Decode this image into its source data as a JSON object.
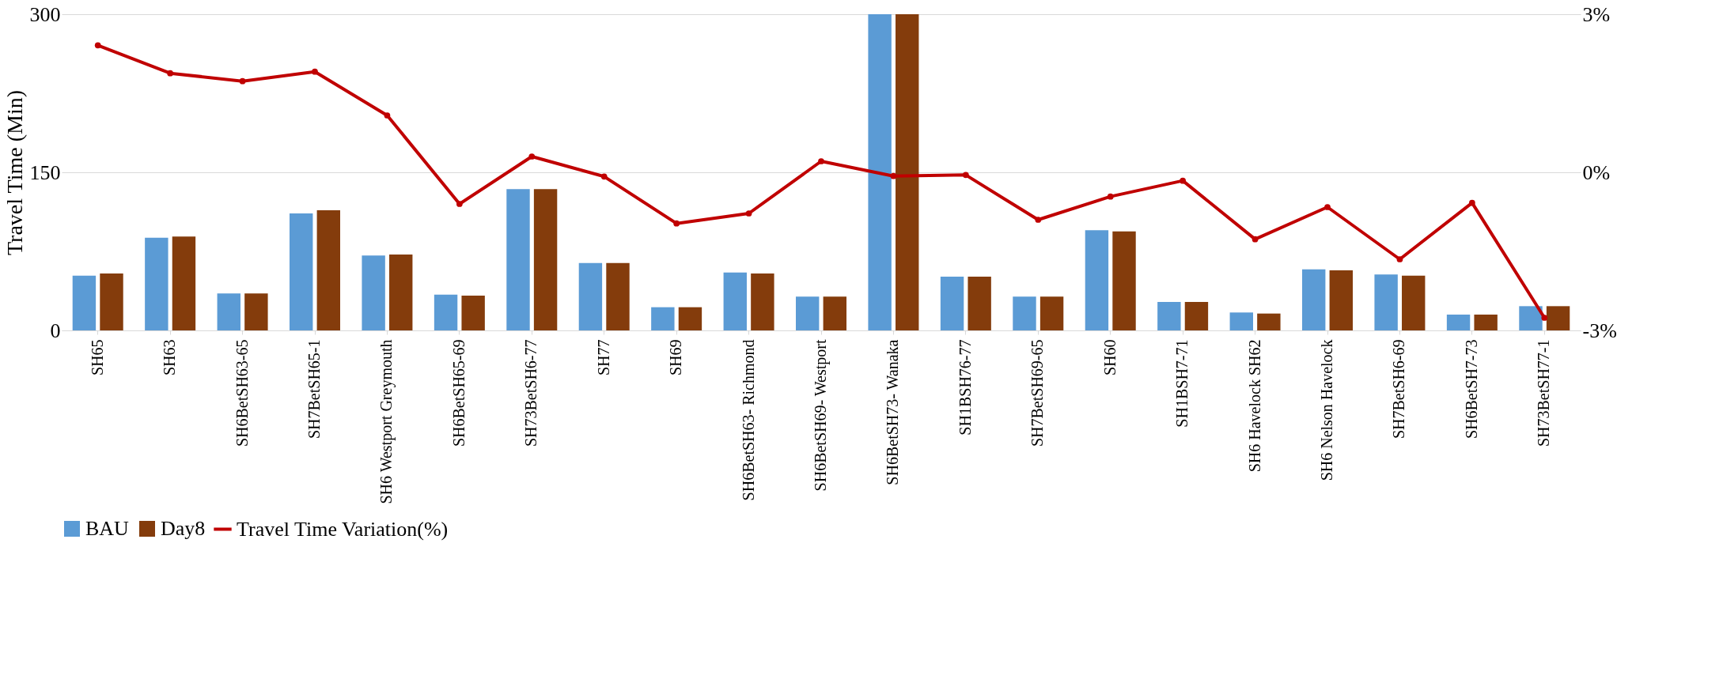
{
  "chart_data": {
    "type": "bar",
    "ylabel": "Travel Time (Min)",
    "categories": [
      "SH65",
      "SH63",
      "SH6BetSH63-65",
      "SH7BetSH65-1",
      "SH6 Westport Greymouth",
      "SH6BetSH65-69",
      "SH73BetSH6-77",
      "SH77",
      "SH69",
      "SH6BetSH63- Richmond",
      "SH6BetSH69- Westport",
      "SH6BetSH73- Wanaka",
      "SH1BSH76-77",
      "SH7BetSH69-65",
      "SH60",
      "SH1BSH7-71",
      "SH6 Havelock SH62",
      "SH6 Nelson Havelock",
      "SH7BetSH6-69",
      "SH6BetSH7-73",
      "SH73BetSH77-1"
    ],
    "series": [
      {
        "name": "BAU",
        "color": "#5b9bd5",
        "values": [
          52,
          88,
          35,
          111,
          71,
          34,
          134,
          64,
          22,
          55,
          32,
          300,
          51,
          32,
          95,
          27,
          17,
          58,
          53,
          15,
          23
        ]
      },
      {
        "name": "Day8",
        "color": "#843c0c",
        "values": [
          54,
          89,
          35,
          114,
          72,
          33,
          134,
          64,
          22,
          54,
          32,
          300,
          51,
          32,
          94,
          27,
          16,
          57,
          52,
          15,
          23
        ]
      },
      {
        "name": "Travel Time Variation(%)",
        "type": "line",
        "axis": "y2",
        "color": "#c00000",
        "marker": "circle",
        "values": [
          2.41,
          1.88,
          1.73,
          1.91,
          1.08,
          -0.6,
          0.3,
          -0.08,
          -0.97,
          -0.78,
          0.21,
          -0.07,
          -0.05,
          -0.9,
          -0.46,
          -0.16,
          -1.27,
          -0.66,
          -1.65,
          -0.58,
          -2.76
        ]
      }
    ],
    "ylim": [
      0,
      300
    ],
    "yticks": [
      0,
      150,
      300
    ],
    "y2lim": [
      -3,
      3
    ],
    "y2ticks": [
      {
        "value": -3,
        "label": "-3%"
      },
      {
        "value": 0,
        "label": "0%"
      },
      {
        "value": 3,
        "label": "3%"
      }
    ],
    "grid": "y",
    "legend": "bottom"
  }
}
